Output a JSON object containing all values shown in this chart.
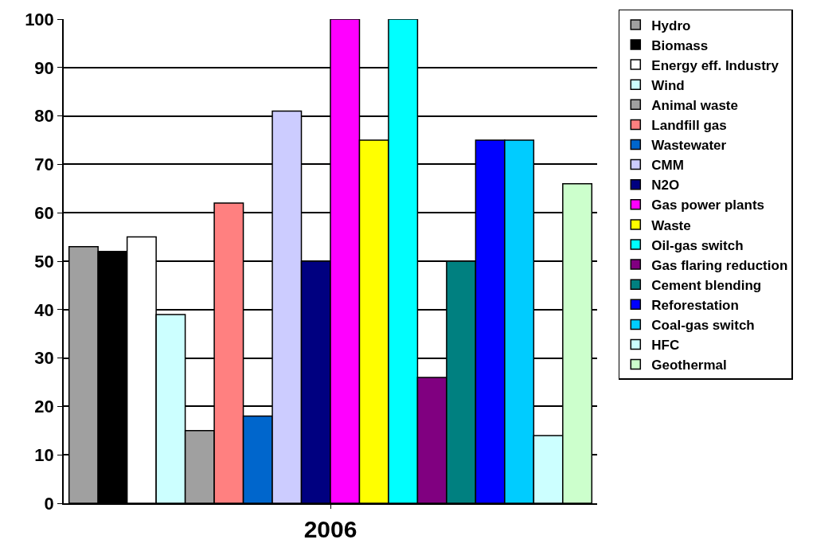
{
  "chart_data": {
    "type": "bar",
    "categories": [
      "2006"
    ],
    "ylim": [
      0,
      100
    ],
    "yticks": [
      0,
      10,
      20,
      30,
      40,
      50,
      60,
      70,
      80,
      90,
      100
    ],
    "grid": "y",
    "legend": "right",
    "series": [
      {
        "name": "Hydro",
        "color": "#a0a0a0",
        "values": [
          53
        ]
      },
      {
        "name": "Biomass",
        "color": "#000000",
        "values": [
          52
        ]
      },
      {
        "name": "Energy eff. Industry",
        "color": "#ffffff",
        "values": [
          55
        ]
      },
      {
        "name": "Wind",
        "color": "#ccffff",
        "values": [
          39
        ]
      },
      {
        "name": "Animal waste",
        "color": "#a0a0a0",
        "values": [
          15
        ]
      },
      {
        "name": "Landfill gas",
        "color": "#ff8080",
        "values": [
          62
        ]
      },
      {
        "name": "Wastewater",
        "color": "#0066cc",
        "values": [
          18
        ]
      },
      {
        "name": "CMM",
        "color": "#ccccff",
        "values": [
          81
        ]
      },
      {
        "name": "N2O",
        "color": "#000080",
        "values": [
          50
        ]
      },
      {
        "name": "Gas power plants",
        "color": "#ff00ff",
        "values": [
          100
        ]
      },
      {
        "name": "Waste",
        "color": "#ffff00",
        "values": [
          75
        ]
      },
      {
        "name": "Oil-gas switch",
        "color": "#00ffff",
        "values": [
          100
        ]
      },
      {
        "name": "Gas flaring reduction",
        "color": "#800080",
        "values": [
          26
        ]
      },
      {
        "name": "Cement blending",
        "color": "#008080",
        "values": [
          50
        ]
      },
      {
        "name": "Reforestation",
        "color": "#0000ff",
        "values": [
          75
        ]
      },
      {
        "name": "Coal-gas switch",
        "color": "#00ccff",
        "values": [
          75
        ]
      },
      {
        "name": "HFC",
        "color": "#ccffff",
        "values": [
          14
        ]
      },
      {
        "name": "Geothermal",
        "color": "#ccffcc",
        "values": [
          66
        ]
      }
    ]
  }
}
